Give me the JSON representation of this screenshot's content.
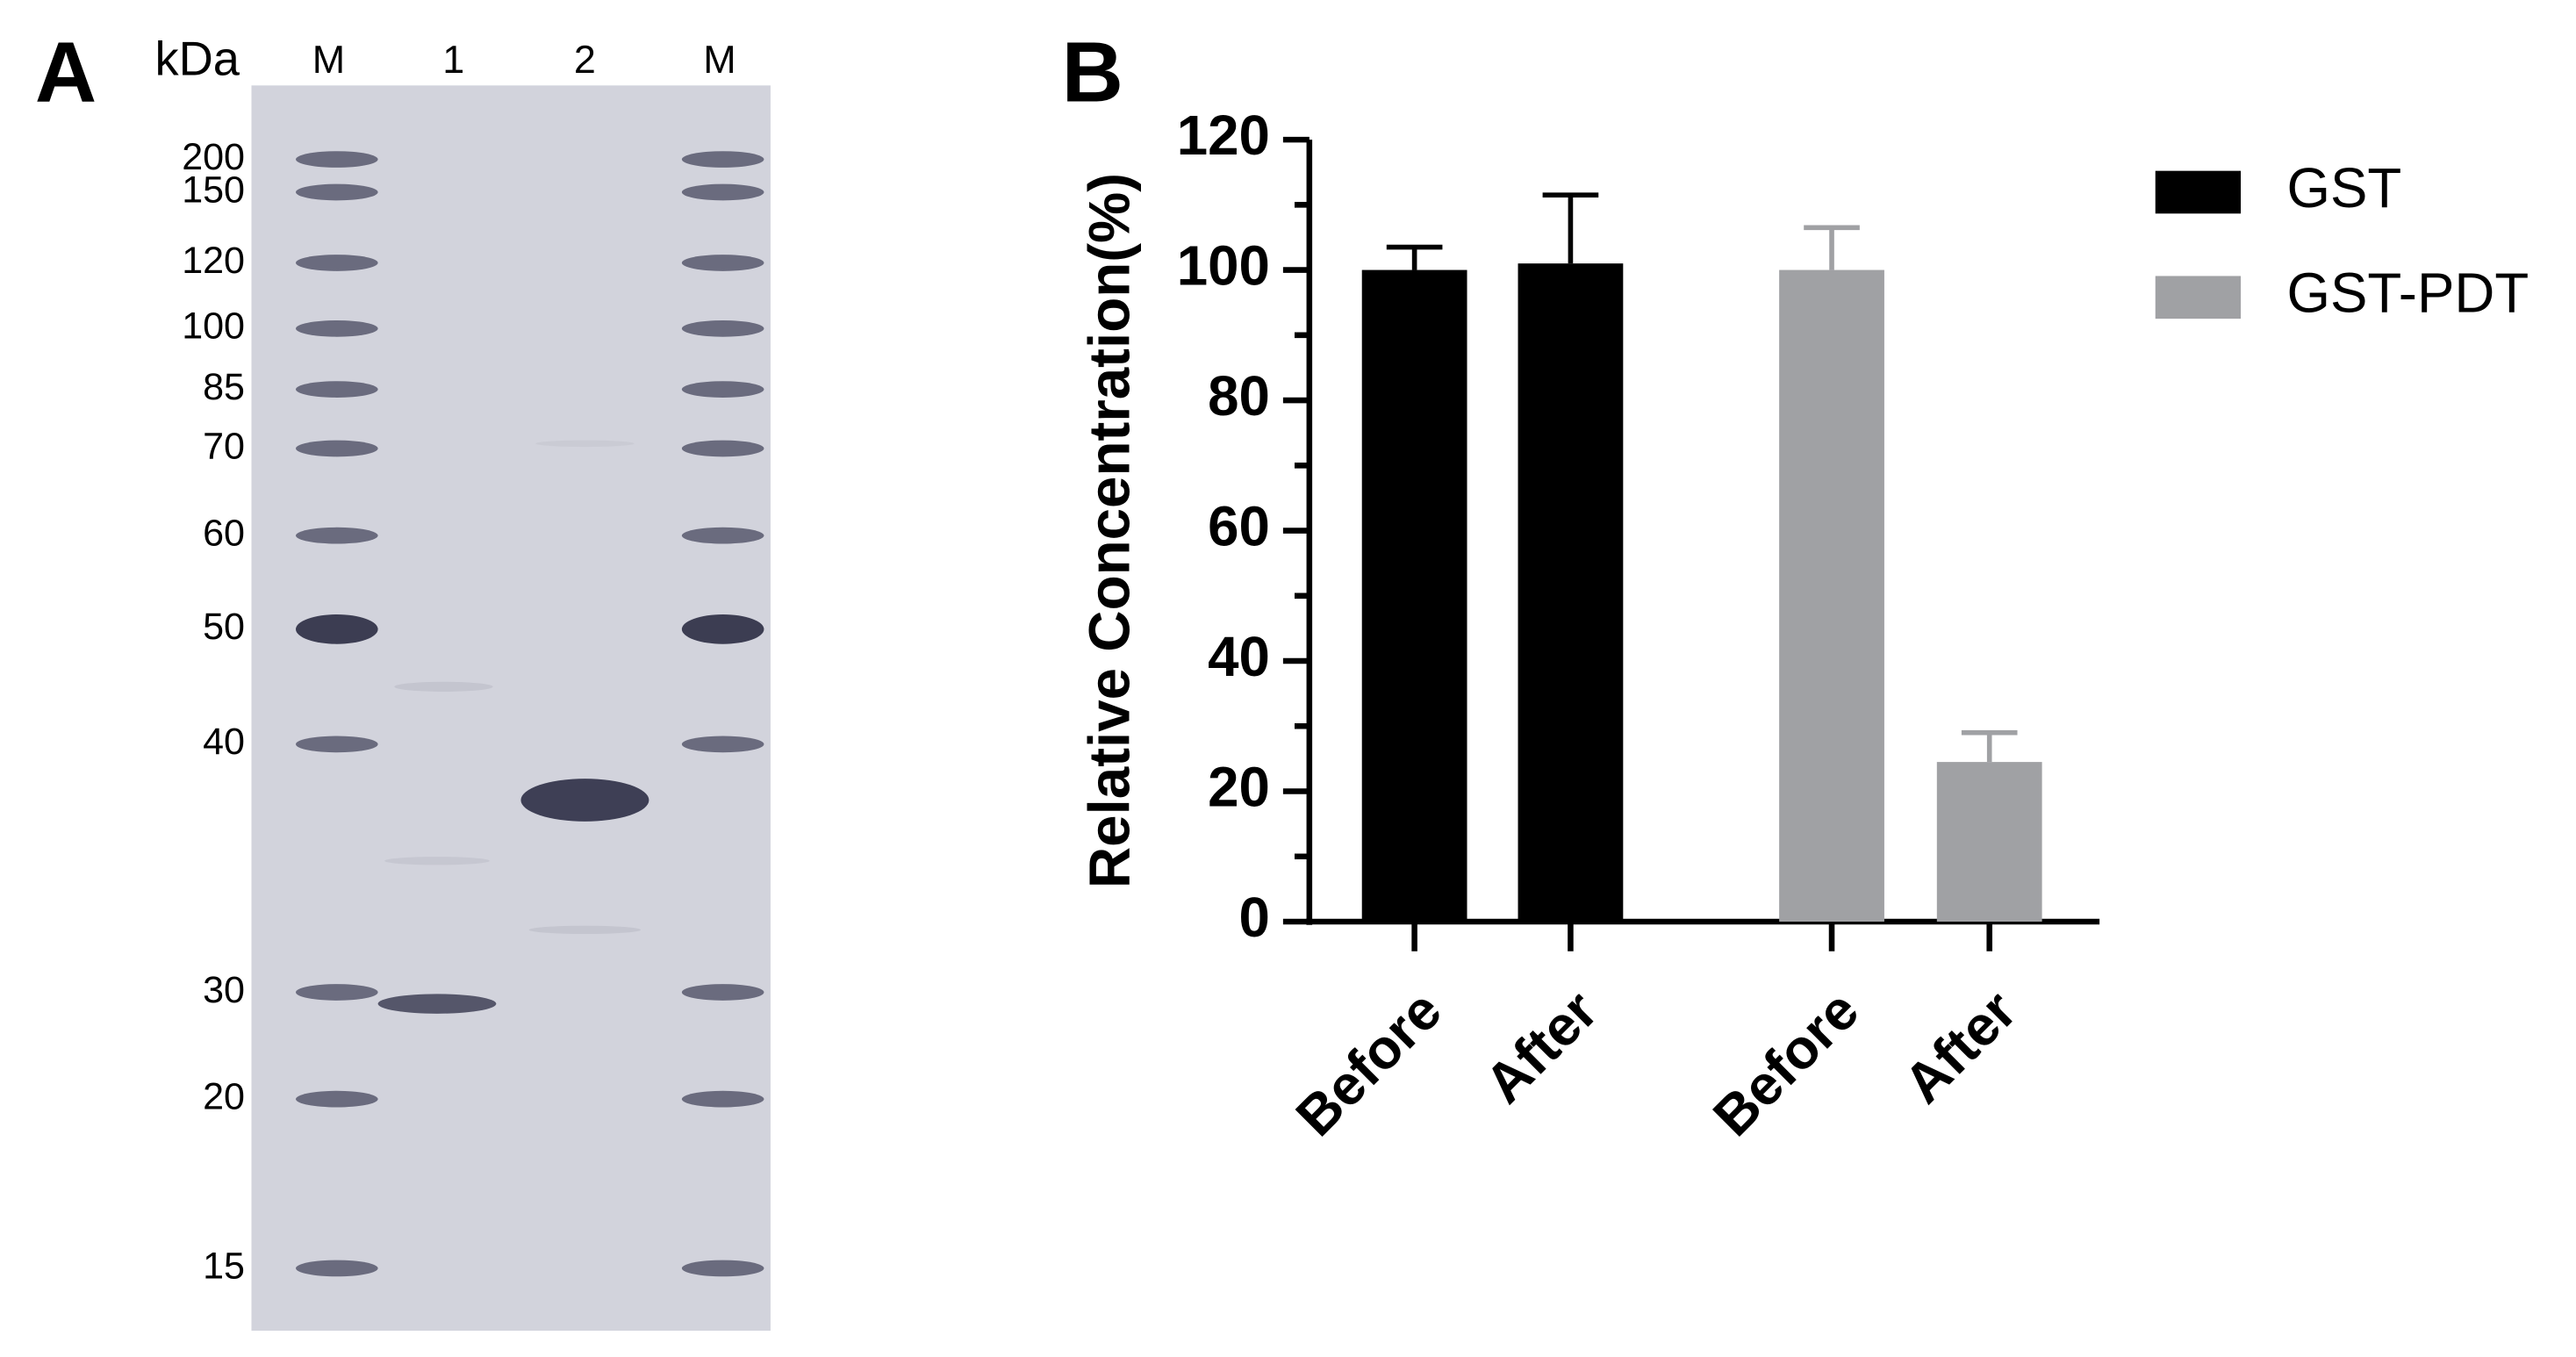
{
  "gel": {
    "panel": "A",
    "unit_label": "kDa",
    "lanes": [
      "M",
      "1",
      "2",
      "M"
    ],
    "markers": [
      200,
      150,
      120,
      100,
      85,
      70,
      60,
      50,
      40,
      30,
      20,
      15
    ]
  },
  "chart_data": {
    "type": "bar",
    "panel": "B",
    "y_label": "Relative Concentration(%)",
    "categories": [
      "Before",
      "After",
      "Before",
      "After"
    ],
    "series": [
      {
        "name": "GST",
        "color": "#000000",
        "values": [
          100,
          101,
          null,
          null
        ],
        "errors": [
          3.5,
          10.5,
          null,
          null
        ]
      },
      {
        "name": "GST-PDT",
        "color": "#a0a1a4",
        "values": [
          null,
          null,
          100,
          24.5
        ],
        "errors": [
          null,
          null,
          6.5,
          4.5
        ]
      }
    ],
    "ylim": [
      0,
      120
    ],
    "yticks": [
      0,
      20,
      40,
      60,
      80,
      100,
      120
    ],
    "minor_yticks": [
      10,
      30,
      50,
      70,
      90,
      110
    ],
    "legend": "right"
  }
}
